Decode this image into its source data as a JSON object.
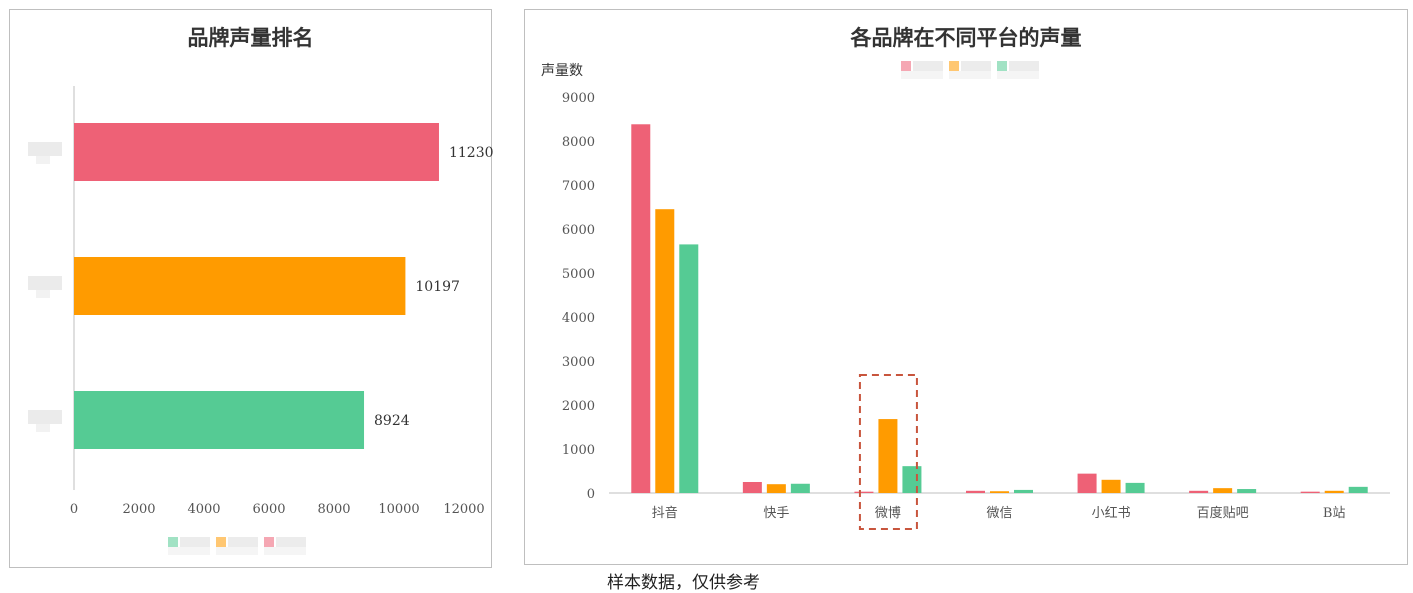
{
  "colors": {
    "series1": "#EE6176",
    "series2": "#FF9B00",
    "series3": "#55CB94",
    "axis": "#bfbfbf",
    "highlight": "#C8553D"
  },
  "chart_data": [
    {
      "type": "bar",
      "orientation": "horizontal",
      "title": "品牌声量排名",
      "categories": [
        "",
        "",
        ""
      ],
      "values": [
        11230,
        10197,
        8924
      ],
      "bar_colors": [
        "#EE6176",
        "#FF9B00",
        "#55CB94"
      ],
      "xlim": [
        0,
        12000
      ],
      "xticks": [
        0,
        2000,
        4000,
        6000,
        8000,
        10000,
        12000
      ],
      "grid": false,
      "data_labels": true,
      "legend": "bottom",
      "legend_blurred": true
    },
    {
      "type": "bar",
      "orientation": "vertical",
      "title": "各品牌在不同平台的声量",
      "ylabel": "声量数",
      "categories": [
        "抖音",
        "快手",
        "微博",
        "微信",
        "小红书",
        "百度贴吧",
        "B站"
      ],
      "series": [
        {
          "color": "#EE6176",
          "values": [
            8380,
            250,
            30,
            50,
            440,
            50,
            30
          ]
        },
        {
          "color": "#FF9B00",
          "values": [
            6450,
            200,
            1680,
            40,
            300,
            110,
            50
          ]
        },
        {
          "color": "#55CB94",
          "values": [
            5650,
            210,
            610,
            70,
            230,
            90,
            140
          ]
        }
      ],
      "ylim": [
        0,
        9000
      ],
      "yticks": [
        0,
        1000,
        2000,
        3000,
        4000,
        5000,
        6000,
        7000,
        8000,
        9000
      ],
      "grid": false,
      "legend": "top",
      "legend_blurred": true,
      "highlight_category": "微博"
    }
  ],
  "footnote": "样本数据，仅供参考"
}
